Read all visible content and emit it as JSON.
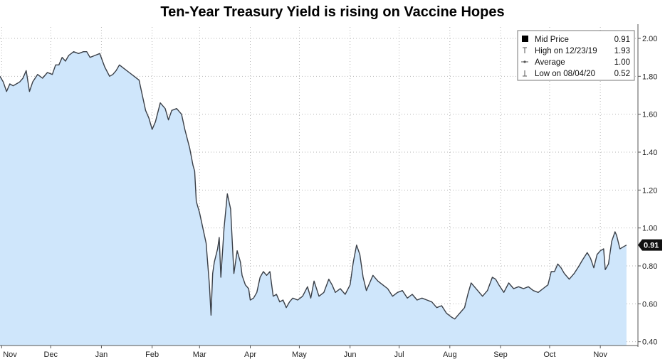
{
  "title": "Ten-Year Treasury Yield is rising on Vaccine Hopes",
  "legend": [
    {
      "label": "Mid Price",
      "value": "0.91",
      "icon": "filled-square-icon"
    },
    {
      "label": "High on 12/23/19",
      "value": "1.93",
      "icon": "high-marker-icon"
    },
    {
      "label": "Average",
      "value": "1.00",
      "icon": "average-line-icon"
    },
    {
      "label": "Low on 08/04/20",
      "value": "0.52",
      "icon": "low-marker-icon"
    }
  ],
  "last_value_label": "0.91",
  "colors": {
    "line": "#3a3f47",
    "fill": "#cfe6fb",
    "grid": "#b5b5b5",
    "last_badge": "#111111"
  },
  "chart_data": {
    "type": "area",
    "title": "Ten-Year Treasury Yield is rising on Vaccine Hopes",
    "xlabel": "",
    "ylabel": "",
    "ylim": [
      0.38,
      2.06
    ],
    "yticks": [
      0.4,
      0.6,
      0.8,
      1.0,
      1.2,
      1.4,
      1.6,
      1.8,
      2.0
    ],
    "ytick_labels": [
      "0.40",
      "0.60",
      "0.80",
      "1.00",
      "1.20",
      "1.40",
      "1.60",
      "1.80",
      "2.00"
    ],
    "x_tick_labels": [
      "Nov",
      "Dec",
      "Jan",
      "Feb",
      "Mar",
      "Apr",
      "May",
      "Jun",
      "Jul",
      "Aug",
      "Sep",
      "Oct",
      "Nov"
    ],
    "x_tick_dates": [
      "2019-11-01",
      "2019-12-01",
      "2020-01-01",
      "2020-02-01",
      "2020-03-01",
      "2020-04-01",
      "2020-05-01",
      "2020-06-01",
      "2020-07-01",
      "2020-08-01",
      "2020-09-01",
      "2020-10-01",
      "2020-11-01"
    ],
    "grid": true,
    "legend_position": "top-right",
    "series": [
      {
        "name": "Mid Price",
        "points": [
          [
            "2019-10-31",
            1.8
          ],
          [
            "2019-11-02",
            1.77
          ],
          [
            "2019-11-04",
            1.72
          ],
          [
            "2019-11-06",
            1.76
          ],
          [
            "2019-11-08",
            1.75
          ],
          [
            "2019-11-10",
            1.76
          ],
          [
            "2019-11-12",
            1.77
          ],
          [
            "2019-11-14",
            1.79
          ],
          [
            "2019-11-16",
            1.83
          ],
          [
            "2019-11-18",
            1.72
          ],
          [
            "2019-11-20",
            1.77
          ],
          [
            "2019-11-23",
            1.81
          ],
          [
            "2019-11-26",
            1.79
          ],
          [
            "2019-11-29",
            1.82
          ],
          [
            "2019-12-02",
            1.81
          ],
          [
            "2019-12-04",
            1.86
          ],
          [
            "2019-12-06",
            1.86
          ],
          [
            "2019-12-08",
            1.9
          ],
          [
            "2019-12-10",
            1.88
          ],
          [
            "2019-12-12",
            1.91
          ],
          [
            "2019-12-15",
            1.93
          ],
          [
            "2019-12-18",
            1.92
          ],
          [
            "2019-12-21",
            1.93
          ],
          [
            "2019-12-23",
            1.93
          ],
          [
            "2019-12-25",
            1.9
          ],
          [
            "2019-12-28",
            1.91
          ],
          [
            "2019-12-31",
            1.92
          ],
          [
            "2020-01-03",
            1.85
          ],
          [
            "2020-01-06",
            1.8
          ],
          [
            "2020-01-08",
            1.81
          ],
          [
            "2020-01-10",
            1.83
          ],
          [
            "2020-01-12",
            1.86
          ],
          [
            "2020-01-15",
            1.84
          ],
          [
            "2020-01-18",
            1.82
          ],
          [
            "2020-01-21",
            1.8
          ],
          [
            "2020-01-24",
            1.78
          ],
          [
            "2020-01-26",
            1.7
          ],
          [
            "2020-01-28",
            1.62
          ],
          [
            "2020-01-30",
            1.58
          ],
          [
            "2020-02-01",
            1.52
          ],
          [
            "2020-02-03",
            1.56
          ],
          [
            "2020-02-06",
            1.66
          ],
          [
            "2020-02-09",
            1.63
          ],
          [
            "2020-02-11",
            1.57
          ],
          [
            "2020-02-13",
            1.62
          ],
          [
            "2020-02-16",
            1.63
          ],
          [
            "2020-02-19",
            1.6
          ],
          [
            "2020-02-21",
            1.52
          ],
          [
            "2020-02-24",
            1.42
          ],
          [
            "2020-02-26",
            1.33
          ],
          [
            "2020-02-27",
            1.3
          ],
          [
            "2020-02-28",
            1.14
          ],
          [
            "2020-03-01",
            1.08
          ],
          [
            "2020-03-03",
            1.0
          ],
          [
            "2020-03-05",
            0.92
          ],
          [
            "2020-03-07",
            0.7
          ],
          [
            "2020-03-08",
            0.54
          ],
          [
            "2020-03-09",
            0.76
          ],
          [
            "2020-03-10",
            0.82
          ],
          [
            "2020-03-12",
            0.89
          ],
          [
            "2020-03-13",
            0.95
          ],
          [
            "2020-03-14",
            0.74
          ],
          [
            "2020-03-16",
            1.0
          ],
          [
            "2020-03-18",
            1.18
          ],
          [
            "2020-03-20",
            1.1
          ],
          [
            "2020-03-22",
            0.76
          ],
          [
            "2020-03-24",
            0.88
          ],
          [
            "2020-03-26",
            0.82
          ],
          [
            "2020-03-27",
            0.75
          ],
          [
            "2020-03-29",
            0.7
          ],
          [
            "2020-03-31",
            0.68
          ],
          [
            "2020-04-01",
            0.62
          ],
          [
            "2020-04-03",
            0.63
          ],
          [
            "2020-04-05",
            0.66
          ],
          [
            "2020-04-07",
            0.74
          ],
          [
            "2020-04-09",
            0.77
          ],
          [
            "2020-04-11",
            0.75
          ],
          [
            "2020-04-13",
            0.77
          ],
          [
            "2020-04-15",
            0.64
          ],
          [
            "2020-04-17",
            0.65
          ],
          [
            "2020-04-19",
            0.61
          ],
          [
            "2020-04-21",
            0.62
          ],
          [
            "2020-04-23",
            0.58
          ],
          [
            "2020-04-25",
            0.61
          ],
          [
            "2020-04-27",
            0.63
          ],
          [
            "2020-04-30",
            0.62
          ],
          [
            "2020-05-03",
            0.64
          ],
          [
            "2020-05-06",
            0.69
          ],
          [
            "2020-05-08",
            0.63
          ],
          [
            "2020-05-10",
            0.72
          ],
          [
            "2020-05-13",
            0.64
          ],
          [
            "2020-05-16",
            0.66
          ],
          [
            "2020-05-19",
            0.73
          ],
          [
            "2020-05-21",
            0.7
          ],
          [
            "2020-05-23",
            0.66
          ],
          [
            "2020-05-26",
            0.68
          ],
          [
            "2020-05-29",
            0.65
          ],
          [
            "2020-06-01",
            0.7
          ],
          [
            "2020-06-03",
            0.82
          ],
          [
            "2020-06-05",
            0.91
          ],
          [
            "2020-06-07",
            0.86
          ],
          [
            "2020-06-09",
            0.74
          ],
          [
            "2020-06-11",
            0.67
          ],
          [
            "2020-06-13",
            0.71
          ],
          [
            "2020-06-15",
            0.75
          ],
          [
            "2020-06-18",
            0.72
          ],
          [
            "2020-06-21",
            0.7
          ],
          [
            "2020-06-24",
            0.68
          ],
          [
            "2020-06-27",
            0.64
          ],
          [
            "2020-06-30",
            0.66
          ],
          [
            "2020-07-03",
            0.67
          ],
          [
            "2020-07-06",
            0.63
          ],
          [
            "2020-07-09",
            0.65
          ],
          [
            "2020-07-12",
            0.62
          ],
          [
            "2020-07-15",
            0.63
          ],
          [
            "2020-07-18",
            0.62
          ],
          [
            "2020-07-21",
            0.61
          ],
          [
            "2020-07-24",
            0.58
          ],
          [
            "2020-07-27",
            0.59
          ],
          [
            "2020-07-30",
            0.55
          ],
          [
            "2020-08-02",
            0.53
          ],
          [
            "2020-08-04",
            0.52
          ],
          [
            "2020-08-06",
            0.54
          ],
          [
            "2020-08-08",
            0.56
          ],
          [
            "2020-08-10",
            0.58
          ],
          [
            "2020-08-12",
            0.65
          ],
          [
            "2020-08-14",
            0.71
          ],
          [
            "2020-08-16",
            0.69
          ],
          [
            "2020-08-18",
            0.67
          ],
          [
            "2020-08-21",
            0.64
          ],
          [
            "2020-08-24",
            0.67
          ],
          [
            "2020-08-27",
            0.74
          ],
          [
            "2020-08-29",
            0.73
          ],
          [
            "2020-08-31",
            0.7
          ],
          [
            "2020-09-03",
            0.66
          ],
          [
            "2020-09-06",
            0.71
          ],
          [
            "2020-09-09",
            0.68
          ],
          [
            "2020-09-12",
            0.69
          ],
          [
            "2020-09-15",
            0.68
          ],
          [
            "2020-09-18",
            0.69
          ],
          [
            "2020-09-21",
            0.67
          ],
          [
            "2020-09-24",
            0.66
          ],
          [
            "2020-09-27",
            0.68
          ],
          [
            "2020-09-30",
            0.7
          ],
          [
            "2020-10-02",
            0.77
          ],
          [
            "2020-10-04",
            0.77
          ],
          [
            "2020-10-06",
            0.81
          ],
          [
            "2020-10-08",
            0.79
          ],
          [
            "2020-10-10",
            0.76
          ],
          [
            "2020-10-13",
            0.73
          ],
          [
            "2020-10-16",
            0.76
          ],
          [
            "2020-10-19",
            0.8
          ],
          [
            "2020-10-21",
            0.83
          ],
          [
            "2020-10-24",
            0.87
          ],
          [
            "2020-10-26",
            0.84
          ],
          [
            "2020-10-28",
            0.79
          ],
          [
            "2020-10-30",
            0.86
          ],
          [
            "2020-11-01",
            0.88
          ],
          [
            "2020-11-03",
            0.89
          ],
          [
            "2020-11-04",
            0.78
          ],
          [
            "2020-11-06",
            0.81
          ],
          [
            "2020-11-08",
            0.93
          ],
          [
            "2020-11-10",
            0.98
          ],
          [
            "2020-11-11",
            0.96
          ],
          [
            "2020-11-13",
            0.89
          ],
          [
            "2020-11-15",
            0.9
          ],
          [
            "2020-11-17",
            0.91
          ]
        ]
      }
    ],
    "reference_lines": [
      {
        "name": "High on 12/23/19",
        "value": 1.93
      },
      {
        "name": "Average",
        "value": 1.0
      },
      {
        "name": "Low on 08/04/20",
        "value": 0.52
      }
    ],
    "last_value": 0.91
  }
}
